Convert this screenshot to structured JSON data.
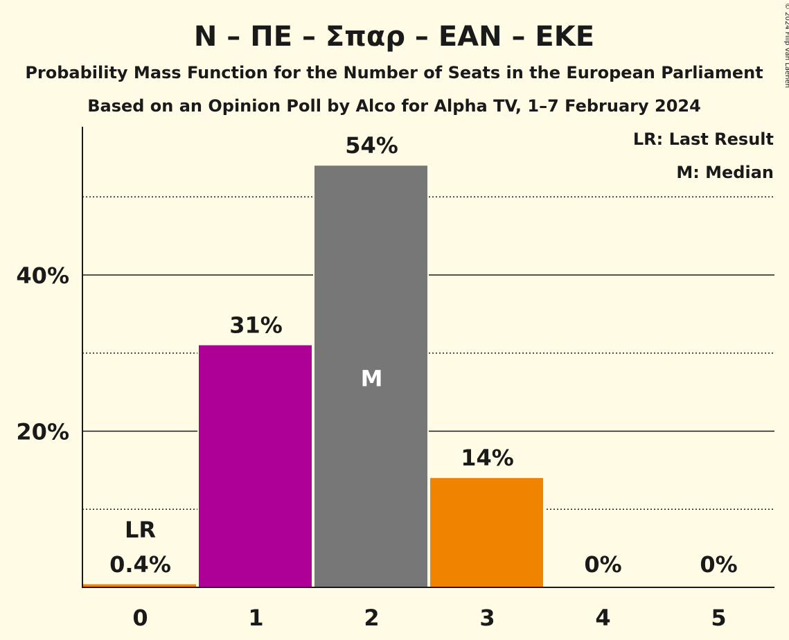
{
  "chart_data": {
    "type": "bar",
    "title": "N – ΠΕ – Σπαρ – ΕΑΝ – ΕΚΕ",
    "subtitle": "Probability Mass Function for the Number of Seats in the European Parliament",
    "source": "Based on an Opinion Poll by Alco for Alpha TV, 1–7 February 2024",
    "copyright": "© 2024 Filip van Laenen",
    "legend": [
      "LR: Last Result",
      "M: Median"
    ],
    "legend_position": "top-right",
    "categories": [
      "0",
      "1",
      "2",
      "3",
      "4",
      "5"
    ],
    "values": [
      0.4,
      31,
      54,
      14,
      0,
      0
    ],
    "value_labels": [
      "0.4%",
      "31%",
      "54%",
      "14%",
      "0%",
      "0%"
    ],
    "colors": [
      "#f08300",
      "#ae0096",
      "#777777",
      "#f08300",
      "#f08300",
      "#f08300"
    ],
    "last_result_category": "0",
    "last_result_label": "LR",
    "median_category": "2",
    "median_label": "M",
    "ylim": [
      0,
      59
    ],
    "yticks": [
      20,
      40
    ],
    "ytick_labels": [
      "20%",
      "40%"
    ],
    "grid_major": [
      20,
      40
    ],
    "grid_minor": [
      10,
      30,
      50
    ]
  }
}
